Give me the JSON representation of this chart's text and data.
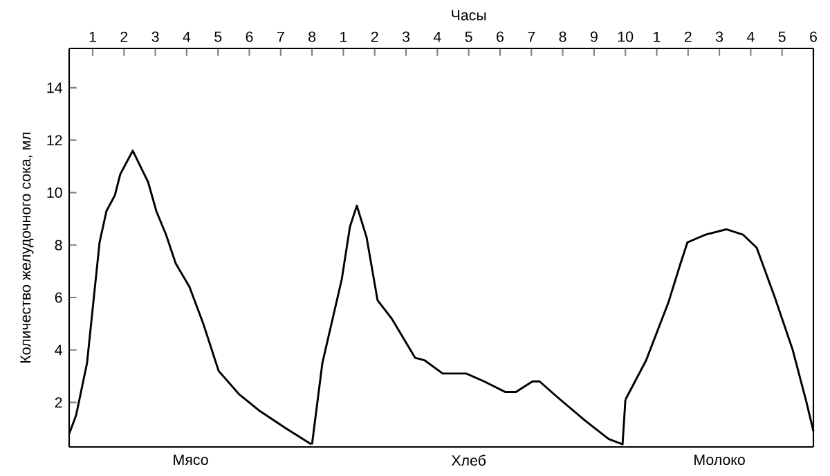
{
  "chart_data": [
    {
      "type": "line",
      "xlabel": "Мясо",
      "ylabel": "Количество желудочного сока, мл",
      "xlim": [
        0.25,
        8
      ],
      "xticks": [
        1,
        2,
        3,
        4,
        5,
        6,
        7,
        8
      ],
      "ylim": [
        0.3,
        15.5
      ],
      "yticks": [
        2,
        4,
        6,
        8,
        10,
        12,
        14
      ],
      "grid": false,
      "series": [
        {
          "color": "#000000",
          "x": [
            0.25,
            0.47,
            0.82,
            1.22,
            1.44,
            1.71,
            1.88,
            2.28,
            2.77,
            3.03,
            3.34,
            3.65,
            4.09,
            4.53,
            5.02,
            5.68,
            6.3,
            7.18,
            7.98
          ],
          "values": [
            0.8,
            1.5,
            3.5,
            8.1,
            9.3,
            9.9,
            10.7,
            11.6,
            10.4,
            9.3,
            8.4,
            7.3,
            6.4,
            5.0,
            3.2,
            2.3,
            1.7,
            1.0,
            0.4
          ]
        }
      ]
    },
    {
      "type": "line",
      "title": "Часы",
      "xlabel": "Хлеб",
      "xlim": [
        0,
        10
      ],
      "xticks": [
        1,
        2,
        3,
        4,
        5,
        6,
        7,
        8,
        9,
        10
      ],
      "ylim": [
        0.3,
        15.5
      ],
      "tick_labels": "x",
      "grid": false,
      "series": [
        {
          "color": "#000000",
          "x": [
            0,
            0.33,
            0.95,
            1.21,
            1.43,
            1.74,
            2.09,
            2.54,
            3.29,
            3.6,
            4.17,
            4.92,
            5.49,
            6.16,
            6.51,
            7.04,
            7.26,
            7.83,
            8.72,
            9.47,
            9.91,
            10
          ],
          "values": [
            0.4,
            3.5,
            6.7,
            8.7,
            9.5,
            8.3,
            5.9,
            5.2,
            3.7,
            3.6,
            3.1,
            3.1,
            2.8,
            2.4,
            2.4,
            2.8,
            2.8,
            2.2,
            1.3,
            0.6,
            0.4,
            2.1
          ]
        }
      ]
    },
    {
      "type": "line",
      "xlabel": "Молоко",
      "xlim": [
        0,
        6
      ],
      "xticks": [
        1,
        2,
        3,
        4,
        5,
        6
      ],
      "ylim": [
        0.3,
        15.5
      ],
      "tick_labels": "x",
      "grid": false,
      "series": [
        {
          "color": "#000000",
          "x": [
            0,
            0.66,
            1.37,
            1.76,
            1.98,
            2.56,
            3.22,
            3.75,
            4.19,
            4.77,
            5.34,
            5.78,
            6.0
          ],
          "values": [
            2.1,
            3.6,
            5.8,
            7.3,
            8.1,
            8.4,
            8.6,
            8.4,
            7.9,
            6.0,
            4.0,
            2.0,
            0.9
          ]
        }
      ]
    }
  ]
}
